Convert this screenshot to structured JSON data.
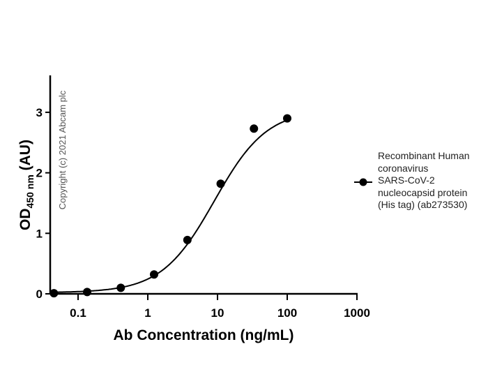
{
  "chart_data": {
    "type": "scatter",
    "title": "",
    "xlabel": "Ab Concentration (ng/mL)",
    "ylabel": "OD450 nm (AU)",
    "ylabel_parts": {
      "main": "OD",
      "sub": "450 nm",
      "suffix": " (AU)"
    },
    "xscale": "log",
    "xlim": [
      0.04,
      1000
    ],
    "ylim": [
      0,
      3.5
    ],
    "x_ticks": [
      "0.1",
      "1",
      "10",
      "100",
      "1000"
    ],
    "y_ticks": [
      "0",
      "1",
      "2",
      "3"
    ],
    "grid": false,
    "legend_position": "right",
    "fit": "4-parameter logistic curve",
    "series": [
      {
        "name": "Recombinant Human coronavirus SARS-CoV-2 nucleocapsid protein (His tag) (ab273530)",
        "x": [
          0.045,
          0.135,
          0.41,
          1.23,
          3.7,
          11.1,
          33.3,
          100
        ],
        "y": [
          0.01,
          0.03,
          0.1,
          0.32,
          0.89,
          1.82,
          2.73,
          2.9
        ]
      }
    ],
    "annotations": [
      "Copyright (c) 2021 Abcam plc"
    ]
  },
  "legend": {
    "lines": [
      "Recombinant Human",
      "coronavirus",
      "SARS-CoV-2",
      "nucleocapsid protein",
      "(His tag) (ab273530)"
    ]
  },
  "watermark": "Copyright (c) 2021 Abcam plc"
}
